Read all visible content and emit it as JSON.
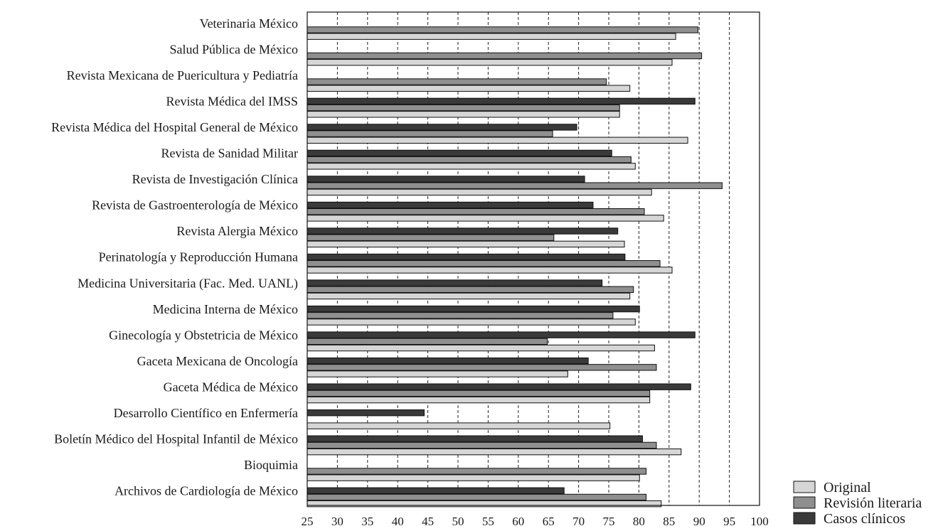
{
  "chart_data": {
    "type": "bar",
    "orientation": "horizontal",
    "title": "",
    "xlabel": "",
    "ylabel": "",
    "xlim": [
      25,
      100
    ],
    "x_ticks": [
      "25",
      "30",
      "35",
      "40",
      "45",
      "50",
      "55",
      "60",
      "65",
      "70",
      "75",
      "80",
      "85",
      "90",
      "95",
      "100"
    ],
    "grid": "vertical-dashed",
    "legend_position": "bottom-right",
    "categories": [
      "Veterinaria México",
      "Salud Pública de México",
      "Revista Mexicana de Puericultura y Pediatría",
      "Revista Médica del IMSS",
      "Revista Médica del Hospital General de México",
      "Revista de Sanidad Militar",
      "Revista de Investigación Clínica",
      "Revista de Gastroenterología de México",
      "Revista Alergia México",
      "Perinatología y Reproducción Humana",
      "Medicina Universitaria (Fac. Med. UANL)",
      "Medicina Interna de México",
      "Ginecología y Obstetricia de México",
      "Gaceta Mexicana de Oncología",
      "Gaceta Médica de México",
      "Desarrollo Científico en Enfermería",
      "Boletín Médico del Hospital Infantil de México",
      "Bioquimia",
      "Archivos de  Cardiología de México"
    ],
    "series": [
      {
        "name": "Casos clínicos",
        "color": "#3a3a3a",
        "values": [
          null,
          null,
          null,
          89.3,
          69.7,
          75.5,
          71.0,
          72.4,
          76.5,
          77.7,
          73.9,
          80.1,
          89.3,
          71.6,
          88.6,
          44.4,
          80.6,
          null,
          67.6
        ]
      },
      {
        "name": "Revisión literaria",
        "color": "#8f8f8f",
        "values": [
          89.8,
          90.4,
          74.6,
          76.8,
          65.7,
          78.7,
          93.8,
          80.9,
          65.9,
          83.5,
          79.1,
          75.7,
          64.8,
          82.9,
          81.8,
          null,
          82.9,
          81.2,
          81.2
        ]
      },
      {
        "name": "Original",
        "color": "#d6d6d6",
        "values": [
          86.1,
          85.5,
          78.5,
          76.8,
          88.1,
          79.4,
          82.1,
          84.1,
          77.6,
          85.5,
          78.5,
          79.4,
          82.6,
          68.2,
          81.8,
          75.2,
          87.0,
          80.1,
          83.7
        ]
      }
    ],
    "legend": [
      {
        "name": "Original",
        "color": "#d6d6d6"
      },
      {
        "name": "Revisión literaria",
        "color": "#8f8f8f"
      },
      {
        "name": "Casos clínicos",
        "color": "#3a3a3a"
      }
    ]
  }
}
